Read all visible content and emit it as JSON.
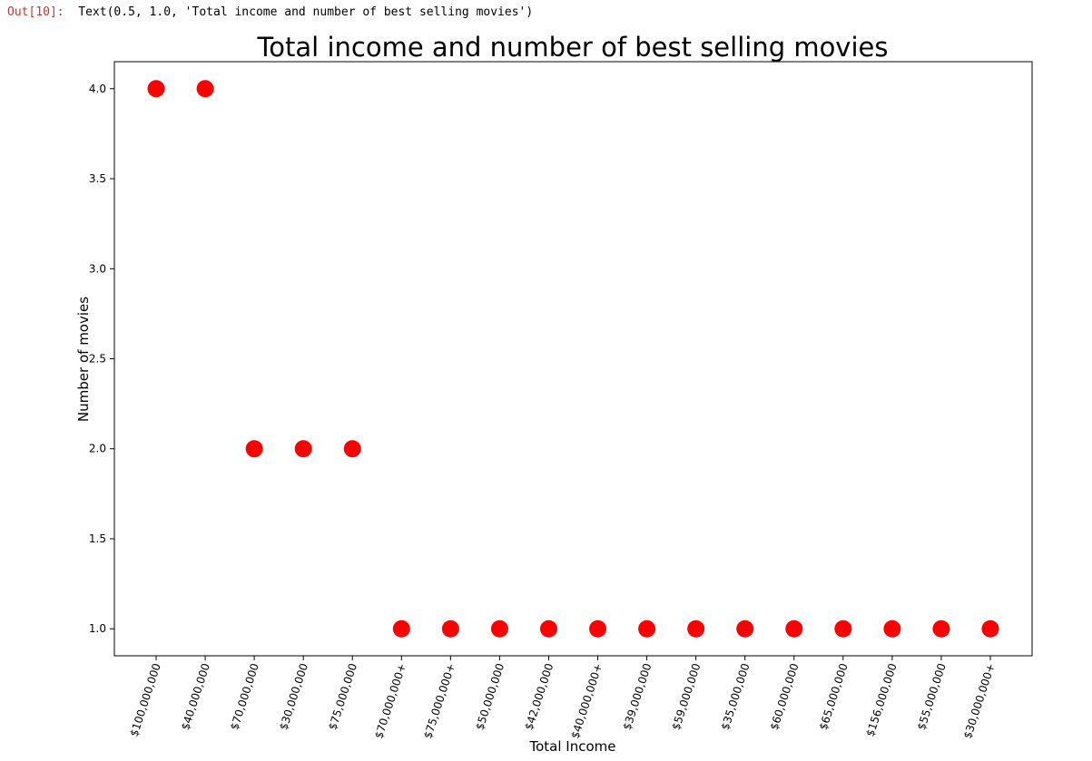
{
  "notebook": {
    "out_prompt": "Out[10]:",
    "out_text": "Text(0.5, 1.0, 'Total income and number of best selling movies')"
  },
  "colors": {
    "point": "#ff0000",
    "axes": "#000000"
  },
  "chart_data": {
    "type": "scatter",
    "title": "Total income and number of best selling movies",
    "xlabel": "Total Income",
    "ylabel": "Number of movies",
    "categories": [
      "$100,000,000",
      "$40,000,000",
      "$70,000,000",
      "$30,000,000",
      "$75,000,000",
      "$70,000,000+",
      "$75,000,000+",
      "$50,000,000",
      "$42,000,000",
      "$40,000,000+",
      "$39,000,000",
      "$59,000,000",
      "$35,000,000",
      "$60,000,000",
      "$65,000,000",
      "$156,000,000",
      "$55,000,000",
      "$30,000,000+"
    ],
    "values": [
      4,
      4,
      2,
      2,
      2,
      1,
      1,
      1,
      1,
      1,
      1,
      1,
      1,
      1,
      1,
      1,
      1,
      1
    ],
    "yticks": [
      "1.0",
      "1.5",
      "2.0",
      "2.5",
      "3.0",
      "3.5",
      "4.0"
    ],
    "ylim": [
      0.85,
      4.15
    ],
    "grid": false,
    "legend": "none"
  }
}
